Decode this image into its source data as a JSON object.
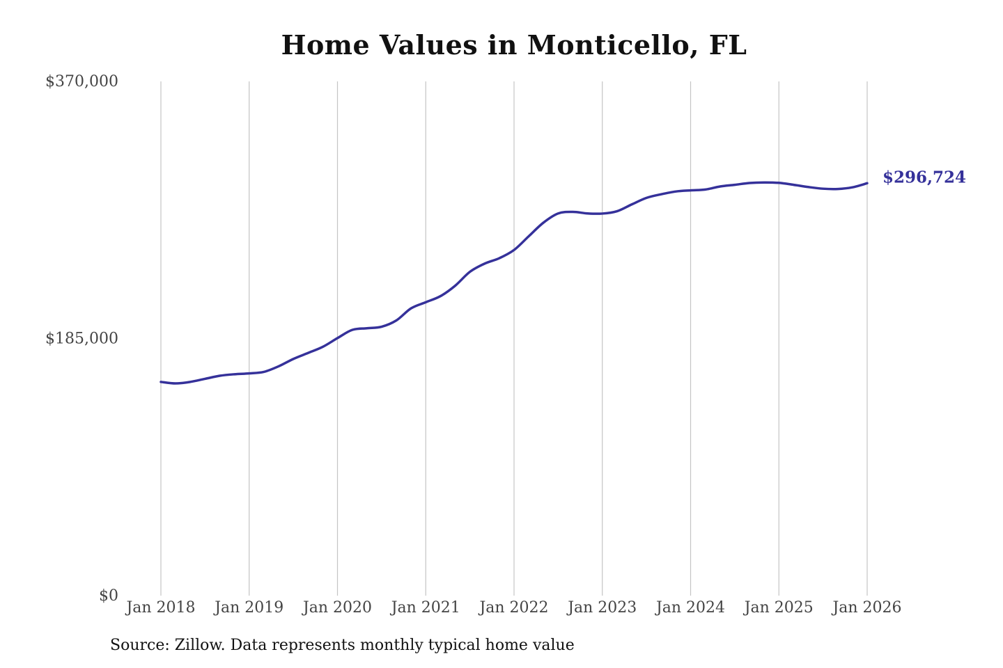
{
  "title": "Home Values in Monticello, FL",
  "source_note": "Source: Zillow. Data represents monthly typical home value",
  "colors": {
    "line": "#35319a",
    "gridline": "#c4c4c4",
    "axis_text": "#444444",
    "title_text": "#111111"
  },
  "chart_data": {
    "type": "line",
    "title": "Home Values in Monticello, FL",
    "xlabel": "",
    "ylabel": "",
    "x_ticks": [
      "Jan 2018",
      "Jan 2019",
      "Jan 2020",
      "Jan 2021",
      "Jan 2022",
      "Jan 2023",
      "Jan 2024",
      "Jan 2025",
      "Jan 2026"
    ],
    "y_ticks": [
      "$0",
      "$185,000",
      "$370,000"
    ],
    "ylim": [
      0,
      370000
    ],
    "xlim": [
      "Jan 2018",
      "Jan 2026"
    ],
    "grid": "vertical",
    "end_label": "$296,724",
    "series": [
      {
        "points": [
          [
            "Jan 2018",
            153800
          ],
          [
            "Mar 2018",
            152700
          ],
          [
            "May 2018",
            153800
          ],
          [
            "Jul 2018",
            156000
          ],
          [
            "Sep 2018",
            158200
          ],
          [
            "Nov 2018",
            159300
          ],
          [
            "Jan 2019",
            159900
          ],
          [
            "Mar 2019",
            161000
          ],
          [
            "May 2019",
            165000
          ],
          [
            "Jul 2019",
            170300
          ],
          [
            "Sep 2019",
            174600
          ],
          [
            "Nov 2019",
            179000
          ],
          [
            "Jan 2020",
            185300
          ],
          [
            "Mar 2020",
            191200
          ],
          [
            "May 2020",
            192400
          ],
          [
            "Jul 2020",
            193500
          ],
          [
            "Sep 2020",
            198000
          ],
          [
            "Nov 2020",
            206700
          ],
          [
            "Jan 2021",
            211100
          ],
          [
            "Mar 2021",
            215500
          ],
          [
            "May 2021",
            223000
          ],
          [
            "Jul 2021",
            233000
          ],
          [
            "Sep 2021",
            238900
          ],
          [
            "Nov 2021",
            242800
          ],
          [
            "Jan 2022",
            248700
          ],
          [
            "Mar 2022",
            258600
          ],
          [
            "May 2022",
            268400
          ],
          [
            "Jul 2022",
            275000
          ],
          [
            "Sep 2022",
            276100
          ],
          [
            "Nov 2022",
            275000
          ],
          [
            "Jan 2023",
            274900
          ],
          [
            "Mar 2023",
            276600
          ],
          [
            "May 2023",
            281500
          ],
          [
            "Jul 2023",
            286200
          ],
          [
            "Sep 2023",
            288800
          ],
          [
            "Nov 2023",
            290800
          ],
          [
            "Jan 2024",
            291600
          ],
          [
            "Mar 2024",
            292200
          ],
          [
            "May 2024",
            294400
          ],
          [
            "Jul 2024",
            295600
          ],
          [
            "Sep 2024",
            296900
          ],
          [
            "Nov 2024",
            297300
          ],
          [
            "Jan 2025",
            297000
          ],
          [
            "Mar 2025",
            295600
          ],
          [
            "May 2025",
            294000
          ],
          [
            "Jul 2025",
            292800
          ],
          [
            "Sep 2025",
            292600
          ],
          [
            "Nov 2025",
            293800
          ],
          [
            "Jan 2026",
            296724
          ]
        ]
      }
    ]
  }
}
